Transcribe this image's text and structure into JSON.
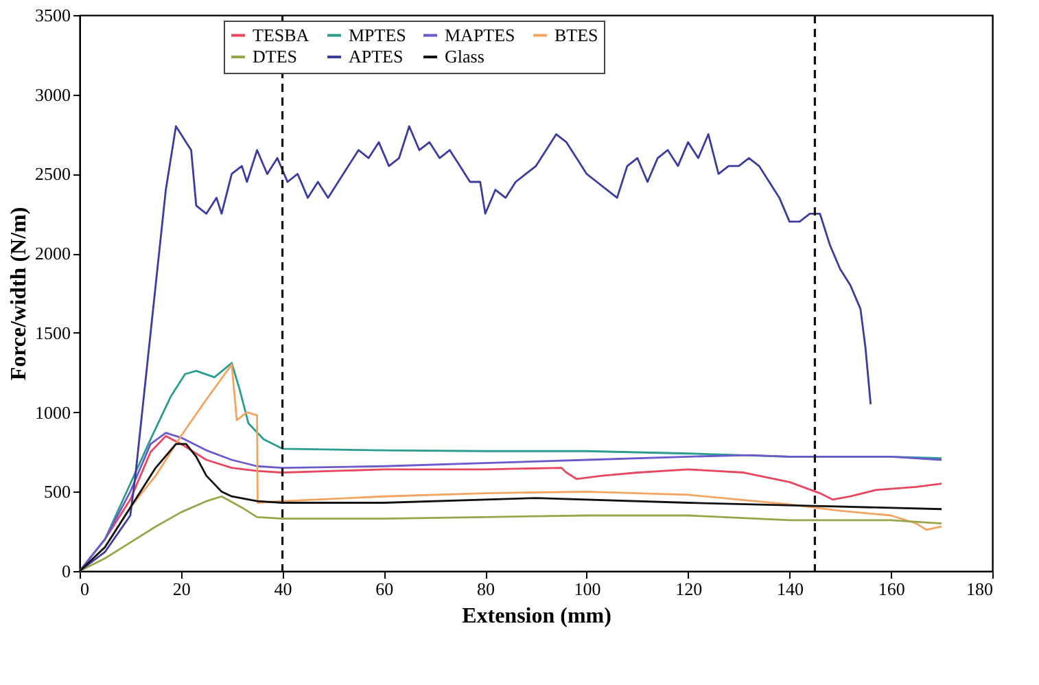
{
  "chart_data": {
    "type": "line",
    "xlabel": "Extension (mm)",
    "ylabel": "Force/width (N/m)",
    "xlim": [
      0,
      180
    ],
    "xticks": [
      0,
      20,
      40,
      60,
      80,
      100,
      120,
      140,
      160,
      180
    ],
    "ylim": [
      0,
      3500
    ],
    "yticks": [
      0,
      500,
      1000,
      1500,
      2000,
      2500,
      3000,
      3500
    ],
    "grid": false,
    "legend": "top",
    "line_style": "solid",
    "marker": "none",
    "series": [
      {
        "name": "TESBA",
        "color": "#e8475f",
        "x": [
          0,
          5,
          10,
          14,
          17,
          20,
          25,
          30,
          35,
          40,
          60,
          80,
          95,
          96,
          98,
          103,
          110,
          120,
          131,
          140,
          146,
          148.5,
          152,
          157,
          165,
          170
        ],
        "values": [
          0,
          200,
          450,
          750,
          850,
          800,
          700,
          650,
          630,
          620,
          640,
          640,
          650,
          620,
          580,
          600,
          620,
          640,
          620,
          560,
          490,
          450,
          470,
          510,
          530,
          550
        ]
      },
      {
        "name": "MPTES",
        "color": "#2a9d8f",
        "x": [
          0,
          5,
          10,
          14,
          18,
          20.8,
          23,
          26.6,
          30,
          31.5,
          33.3,
          36.3,
          40,
          60,
          80,
          100,
          120,
          140,
          160,
          170
        ],
        "values": [
          0,
          200,
          550,
          830,
          1100,
          1240,
          1260,
          1220,
          1310,
          1150,
          930,
          830,
          770,
          760,
          755,
          755,
          740,
          720,
          720,
          710
        ]
      },
      {
        "name": "MAPTES",
        "color": "#6a5acd",
        "x": [
          0,
          5,
          10,
          14,
          17,
          20,
          25,
          30,
          35,
          40,
          60,
          80,
          100,
          120,
          132,
          140,
          160,
          170
        ],
        "values": [
          0,
          200,
          500,
          800,
          870,
          840,
          760,
          700,
          660,
          650,
          660,
          680,
          700,
          720,
          730,
          720,
          720,
          700
        ]
      },
      {
        "name": "BTES",
        "color": "#f4a460",
        "x": [
          0,
          5,
          10,
          15,
          20,
          25,
          30,
          31,
          33,
          35,
          35.1,
          40,
          60,
          80,
          100,
          120,
          140,
          150,
          160,
          165,
          167,
          170
        ],
        "values": [
          0,
          150,
          400,
          600,
          850,
          1080,
          1300,
          950,
          1000,
          980,
          430,
          440,
          470,
          490,
          500,
          480,
          420,
          380,
          350,
          300,
          260,
          280
        ]
      },
      {
        "name": "DTES",
        "color": "#9aa54a",
        "x": [
          0,
          5,
          10,
          15,
          20,
          25,
          28,
          32,
          35,
          40,
          60,
          80,
          100,
          120,
          140,
          160,
          170
        ],
        "values": [
          0,
          80,
          180,
          280,
          370,
          440,
          470,
          400,
          340,
          330,
          330,
          340,
          350,
          350,
          320,
          320,
          300
        ]
      },
      {
        "name": "APTES",
        "color": "#3c3c9e",
        "x": [
          0,
          5,
          10,
          11,
          13,
          15,
          17,
          19,
          20,
          21,
          22,
          23,
          25,
          27,
          28,
          30,
          32,
          33,
          35,
          37,
          39,
          41,
          43,
          45,
          47,
          49,
          51,
          53,
          55,
          57,
          59,
          61,
          63,
          65,
          67,
          69,
          71,
          73,
          75,
          77,
          79,
          80,
          82,
          84,
          86,
          88,
          90,
          92,
          94,
          96,
          98,
          100,
          102,
          104,
          106,
          108,
          110,
          112,
          114,
          116,
          118,
          120,
          122,
          124,
          126,
          128,
          130,
          132,
          134,
          136,
          138,
          140,
          142,
          144,
          146,
          148,
          150,
          152,
          154,
          155,
          156
        ],
        "values": [
          0,
          120,
          350,
          600,
          1200,
          1800,
          2400,
          2800,
          2750,
          2700,
          2650,
          2300,
          2250,
          2350,
          2250,
          2500,
          2550,
          2450,
          2650,
          2500,
          2600,
          2450,
          2500,
          2350,
          2450,
          2350,
          2450,
          2550,
          2650,
          2600,
          2700,
          2550,
          2600,
          2800,
          2650,
          2700,
          2600,
          2650,
          2550,
          2450,
          2450,
          2250,
          2400,
          2350,
          2450,
          2500,
          2550,
          2650,
          2750,
          2700,
          2600,
          2500,
          2450,
          2400,
          2350,
          2550,
          2600,
          2450,
          2600,
          2650,
          2550,
          2700,
          2600,
          2750,
          2500,
          2550,
          2550,
          2600,
          2550,
          2450,
          2350,
          2200,
          2200,
          2250,
          2250,
          2050,
          1900,
          1800,
          1650,
          1400,
          1050
        ]
      },
      {
        "name": "Glass",
        "color": "#111111",
        "x": [
          0,
          5,
          10,
          15,
          19,
          21,
          23,
          25,
          28,
          30,
          35,
          40,
          60,
          90,
          120,
          145,
          170
        ],
        "values": [
          0,
          150,
          400,
          650,
          800,
          800,
          720,
          600,
          500,
          470,
          440,
          430,
          430,
          460,
          430,
          410,
          390
        ]
      }
    ],
    "ref_lines": [
      {
        "axis": "x",
        "value": 40,
        "color": "#111111",
        "line_style": "dashed"
      },
      {
        "axis": "x",
        "value": 145,
        "color": "#111111",
        "line_style": "dashed"
      }
    ]
  }
}
